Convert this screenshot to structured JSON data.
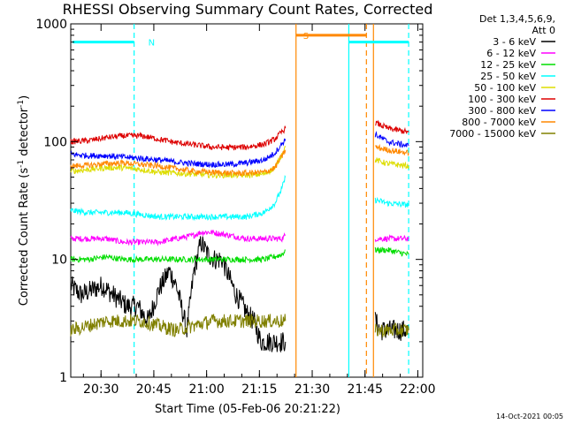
{
  "chart_data": {
    "type": "line",
    "title": "RHESSI Observing Summary Count Rates, Corrected",
    "xlabel": "Start Time (05-Feb-06 20:21:22)",
    "ylabel_main": "Corrected Count Rate (s",
    "ylabel_sup1": "-1",
    "ylabel_mid": " detector",
    "ylabel_sup2": "-1",
    "ylabel_end": ")",
    "ylog": true,
    "ylim": [
      1,
      1000
    ],
    "xlim_minutes": [
      0,
      100
    ],
    "x_ticks": [
      {
        "label": "20:30",
        "t": 8.6
      },
      {
        "label": "20:45",
        "t": 23.6
      },
      {
        "label": "21:00",
        "t": 38.6
      },
      {
        "label": "21:15",
        "t": 53.6
      },
      {
        "label": "21:30",
        "t": 68.6
      },
      {
        "label": "21:45",
        "t": 83.6
      },
      {
        "label": "22:00",
        "t": 98.6
      }
    ],
    "y_ticks": [
      {
        "label": "1",
        "v": 1
      },
      {
        "label": "10",
        "v": 10
      },
      {
        "label": "100",
        "v": 100
      },
      {
        "label": "1000",
        "v": 1000
      }
    ],
    "legend": {
      "header1": "Det 1,3,4,5,6,9,",
      "header2": "Att 0",
      "position": "right"
    },
    "series": [
      {
        "name": "3 - 6 keV",
        "color": "#000000",
        "points": [
          [
            0,
            6
          ],
          [
            3,
            5
          ],
          [
            6,
            5.5
          ],
          [
            9,
            6
          ],
          [
            12,
            5
          ],
          [
            16,
            4
          ],
          [
            19,
            4
          ],
          [
            22,
            3
          ],
          [
            25,
            5.5
          ],
          [
            28,
            8
          ],
          [
            30,
            6
          ],
          [
            33,
            2.5
          ],
          [
            35,
            8
          ],
          [
            37,
            14
          ],
          [
            39,
            11
          ],
          [
            41,
            10
          ],
          [
            43,
            10
          ],
          [
            45,
            7
          ],
          [
            47,
            5
          ],
          [
            49,
            4
          ],
          [
            50,
            3.5
          ],
          [
            52,
            3
          ],
          [
            54,
            2
          ],
          [
            61,
            2
          ]
        ],
        "points_after": [
          [
            86.5,
            3
          ],
          [
            88,
            2.5
          ],
          [
            92,
            2.5
          ],
          [
            96,
            2.5
          ]
        ]
      },
      {
        "name": "6 - 12 keV",
        "color": "#ff00ff",
        "points": [
          [
            0,
            15
          ],
          [
            5,
            15
          ],
          [
            10,
            15
          ],
          [
            15,
            14
          ],
          [
            20,
            14
          ],
          [
            25,
            14
          ],
          [
            30,
            15
          ],
          [
            35,
            16
          ],
          [
            37,
            17
          ],
          [
            40,
            17
          ],
          [
            45,
            16
          ],
          [
            50,
            15
          ],
          [
            55,
            15
          ],
          [
            60,
            15
          ],
          [
            61,
            16
          ]
        ],
        "points_after": [
          [
            86.5,
            15
          ],
          [
            90,
            15
          ],
          [
            96,
            15
          ]
        ]
      },
      {
        "name": "12 - 25 keV",
        "color": "#00dd00",
        "points": [
          [
            0,
            10
          ],
          [
            5,
            10
          ],
          [
            10,
            10.5
          ],
          [
            15,
            10
          ],
          [
            20,
            10
          ],
          [
            25,
            10
          ],
          [
            30,
            10
          ],
          [
            35,
            10
          ],
          [
            40,
            10
          ],
          [
            45,
            10
          ],
          [
            50,
            10
          ],
          [
            55,
            10
          ],
          [
            60,
            11
          ],
          [
            61,
            12
          ]
        ],
        "points_after": [
          [
            86.5,
            12
          ],
          [
            90,
            12
          ],
          [
            96,
            11
          ]
        ]
      },
      {
        "name": "25 - 50 keV",
        "color": "#00ffff",
        "points": [
          [
            0,
            26
          ],
          [
            5,
            25
          ],
          [
            10,
            25
          ],
          [
            15,
            25
          ],
          [
            20,
            24
          ],
          [
            25,
            23
          ],
          [
            30,
            23
          ],
          [
            35,
            23
          ],
          [
            40,
            23
          ],
          [
            45,
            23
          ],
          [
            50,
            23
          ],
          [
            55,
            25
          ],
          [
            58,
            30
          ],
          [
            60,
            40
          ],
          [
            61,
            50
          ]
        ],
        "points_after": [
          [
            86.5,
            32
          ],
          [
            90,
            30
          ],
          [
            96,
            29
          ]
        ]
      },
      {
        "name": "50 - 100 keV",
        "color": "#dddd00",
        "points": [
          [
            0,
            56
          ],
          [
            5,
            58
          ],
          [
            10,
            60
          ],
          [
            15,
            60
          ],
          [
            20,
            58
          ],
          [
            25,
            55
          ],
          [
            30,
            54
          ],
          [
            35,
            53
          ],
          [
            40,
            52
          ],
          [
            45,
            52
          ],
          [
            50,
            52
          ],
          [
            55,
            53
          ],
          [
            58,
            60
          ],
          [
            61,
            90
          ]
        ],
        "points_after": [
          [
            86.5,
            70
          ],
          [
            90,
            65
          ],
          [
            96,
            62
          ]
        ]
      },
      {
        "name": "100 - 300 keV",
        "color": "#dd0000",
        "points": [
          [
            0,
            100
          ],
          [
            5,
            102
          ],
          [
            10,
            108
          ],
          [
            15,
            112
          ],
          [
            20,
            112
          ],
          [
            25,
            105
          ],
          [
            30,
            98
          ],
          [
            35,
            94
          ],
          [
            40,
            90
          ],
          [
            45,
            89
          ],
          [
            50,
            90
          ],
          [
            55,
            95
          ],
          [
            58,
            105
          ],
          [
            61,
            130
          ]
        ],
        "points_after": [
          [
            86.5,
            145
          ],
          [
            90,
            130
          ],
          [
            96,
            120
          ]
        ]
      },
      {
        "name": "300 - 800 keV",
        "color": "#0000ff",
        "points": [
          [
            0,
            78
          ],
          [
            5,
            76
          ],
          [
            10,
            76
          ],
          [
            15,
            74
          ],
          [
            20,
            72
          ],
          [
            25,
            70
          ],
          [
            30,
            67
          ],
          [
            35,
            65
          ],
          [
            40,
            64
          ],
          [
            45,
            64
          ],
          [
            50,
            66
          ],
          [
            55,
            70
          ],
          [
            58,
            80
          ],
          [
            61,
            105
          ]
        ],
        "points_after": [
          [
            86.5,
            115
          ],
          [
            90,
            100
          ],
          [
            96,
            92
          ]
        ]
      },
      {
        "name": "800 - 7000 keV",
        "color": "#ff8800",
        "points": [
          [
            0,
            62
          ],
          [
            5,
            63
          ],
          [
            10,
            65
          ],
          [
            15,
            66
          ],
          [
            20,
            64
          ],
          [
            25,
            62
          ],
          [
            30,
            59
          ],
          [
            35,
            56
          ],
          [
            40,
            55
          ],
          [
            45,
            54
          ],
          [
            50,
            54
          ],
          [
            55,
            55
          ],
          [
            58,
            60
          ],
          [
            61,
            85
          ]
        ],
        "points_after": [
          [
            86.5,
            90
          ],
          [
            90,
            85
          ],
          [
            96,
            80
          ]
        ]
      },
      {
        "name": "7000 - 15000 keV",
        "color": "#808000",
        "points": [
          [
            0,
            2.5
          ],
          [
            10,
            3
          ],
          [
            20,
            3
          ],
          [
            30,
            2.5
          ],
          [
            40,
            3
          ],
          [
            50,
            3
          ],
          [
            61,
            3
          ]
        ],
        "points_after": [
          [
            86.5,
            2.5
          ],
          [
            96,
            2.5
          ]
        ]
      }
    ],
    "flag_bars": [
      {
        "label": "",
        "color": "#00ffff",
        "t_start": 0.5,
        "t_end": 18,
        "value": 700
      },
      {
        "label": "N",
        "color": "#00ffff",
        "t_start": 20,
        "t_end": 20,
        "value": 700
      },
      {
        "label": "S",
        "color": "#ff8800",
        "t_start": 64,
        "t_end": 84,
        "value": 800
      },
      {
        "label": "",
        "color": "#00ffff",
        "t_start": 79,
        "t_end": 96,
        "value": 700
      }
    ],
    "vlines": [
      {
        "t": 18,
        "color": "#00ffff",
        "dashed": true
      },
      {
        "t": 64,
        "color": "#ff8800",
        "dashed": false
      },
      {
        "t": 79,
        "color": "#00ffff",
        "dashed": false
      },
      {
        "t": 84,
        "color": "#ff8800",
        "dashed": true
      },
      {
        "t": 86,
        "color": "#ff8800",
        "dashed": false
      },
      {
        "t": 96,
        "color": "#00ffff",
        "dashed": true
      }
    ],
    "timestamp": "14-Oct-2021 00:05"
  }
}
